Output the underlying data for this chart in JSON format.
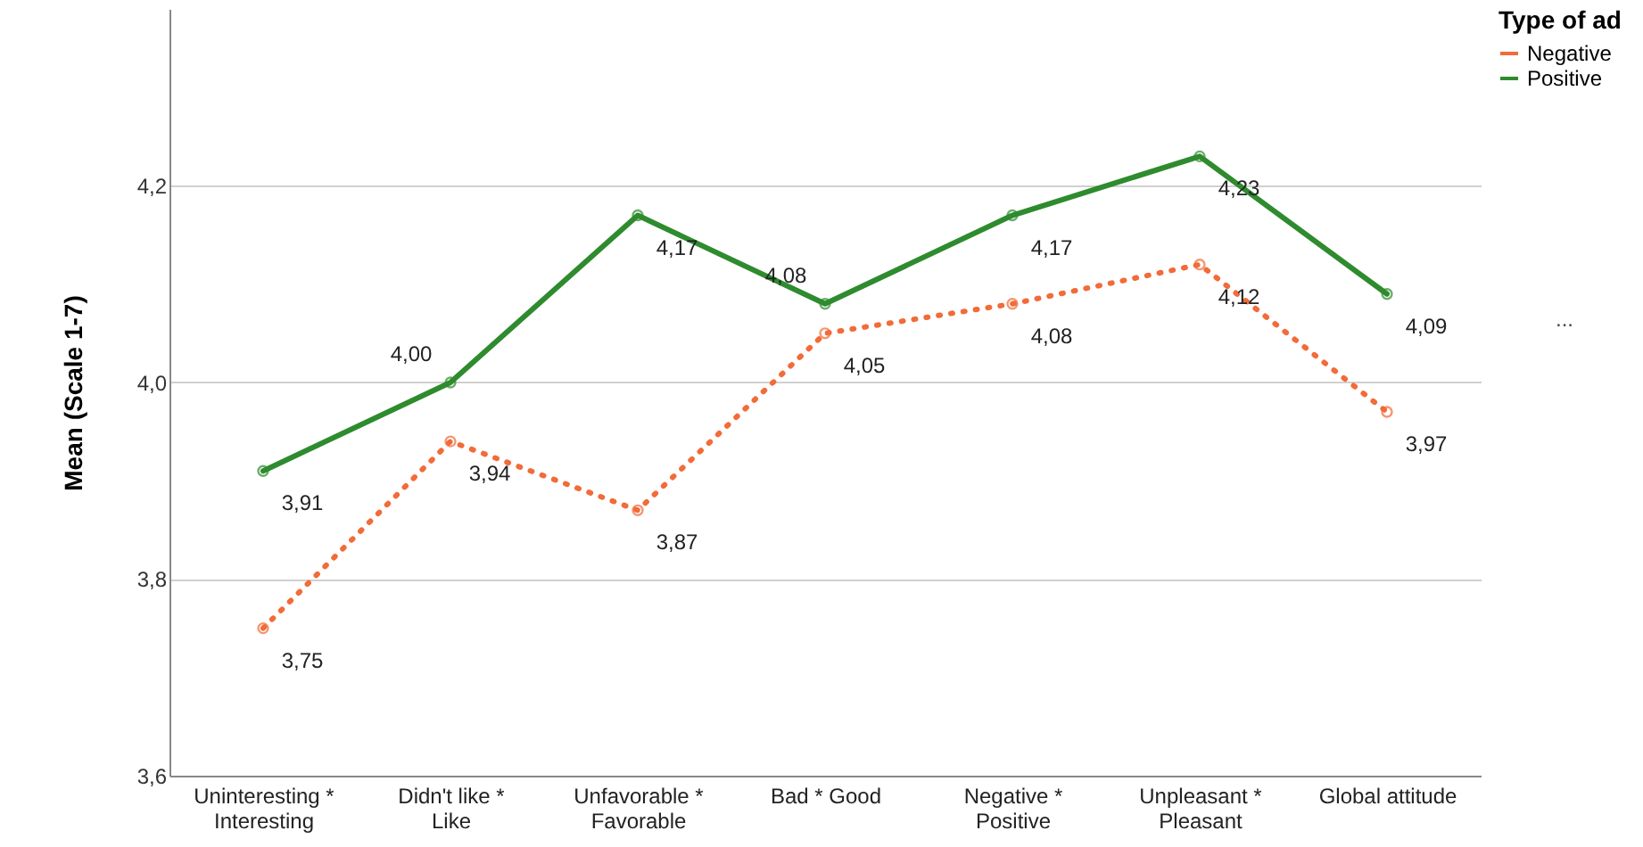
{
  "chart_data": {
    "type": "line",
    "ylabel": "Mean (Scale 1-7)",
    "legend_title": "Type of ad",
    "legend": "right",
    "categories": [
      "Uninteresting *\nInteresting",
      "Didn't like *\nLike",
      "Unfavorable *\nFavorable",
      "Bad * Good",
      "Negative *\nPositive",
      "Unpleasant *\nPleasant",
      "Global attitude"
    ],
    "series": [
      {
        "name": "Negative",
        "color": "#f26b38",
        "line_style": "dotted",
        "values": [
          3.75,
          3.94,
          3.87,
          4.05,
          4.08,
          4.12,
          3.97
        ],
        "value_labels": [
          "3,75",
          "3,94",
          "3,87",
          "4,05",
          "4,08",
          "4,12",
          "3,97"
        ]
      },
      {
        "name": "Positive",
        "color": "#2e8b2e",
        "line_style": "solid",
        "values": [
          3.91,
          4.0,
          4.17,
          4.08,
          4.17,
          4.23,
          4.09
        ],
        "value_labels": [
          "3,91",
          "4,00",
          "4,17",
          "4,08",
          "4,17",
          "4,23",
          "4,09"
        ]
      }
    ],
    "marker": "circle",
    "grid": "y",
    "ylim": [
      3.6,
      4.38
    ],
    "yticks": [
      {
        "value": 3.6,
        "label": "3,6"
      },
      {
        "value": 3.8,
        "label": "3,8"
      },
      {
        "value": 4.0,
        "label": "4,0"
      },
      {
        "value": 4.2,
        "label": "4,2"
      }
    ],
    "annotations": [
      "..."
    ]
  }
}
